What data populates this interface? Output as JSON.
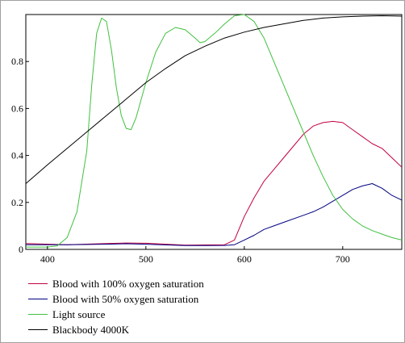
{
  "chart_data": {
    "type": "line",
    "title": "",
    "xlabel": "",
    "ylabel": "",
    "xlim": [
      378,
      760
    ],
    "ylim": [
      0,
      1.0
    ],
    "xticks": [
      400,
      500,
      600,
      700
    ],
    "yticks": [
      0,
      0.2,
      0.4,
      0.6,
      0.8
    ],
    "tick_labels_x": [
      "400",
      "500",
      "600",
      "700"
    ],
    "tick_labels_y": [
      "0",
      "0.2",
      "0.4",
      "0.6",
      "0.8"
    ],
    "grid": false,
    "legend_position": "bottom-left",
    "series": [
      {
        "name": "Blood with 100% oxygen saturation",
        "color": "#c00040",
        "x": [
          378,
          420,
          460,
          480,
          500,
          540,
          580,
          590,
          600,
          610,
          620,
          630,
          640,
          650,
          660,
          670,
          680,
          690,
          700,
          710,
          720,
          730,
          740,
          750,
          760
        ],
        "y": [
          0.025,
          0.02,
          0.025,
          0.027,
          0.026,
          0.018,
          0.02,
          0.04,
          0.14,
          0.22,
          0.29,
          0.34,
          0.39,
          0.44,
          0.49,
          0.525,
          0.54,
          0.545,
          0.54,
          0.51,
          0.48,
          0.45,
          0.43,
          0.39,
          0.35
        ]
      },
      {
        "name": "Blood with 50% oxygen saturation",
        "color": "#000080",
        "x": [
          378,
          420,
          460,
          480,
          500,
          540,
          580,
          590,
          600,
          610,
          620,
          630,
          640,
          660,
          670,
          680,
          690,
          700,
          710,
          720,
          730,
          740,
          750,
          760
        ],
        "y": [
          0.02,
          0.02,
          0.022,
          0.024,
          0.022,
          0.016,
          0.017,
          0.02,
          0.04,
          0.06,
          0.085,
          0.1,
          0.115,
          0.145,
          0.16,
          0.18,
          0.205,
          0.23,
          0.255,
          0.27,
          0.28,
          0.26,
          0.23,
          0.21
        ]
      },
      {
        "name": "Light source",
        "color": "#40c040",
        "x": [
          378,
          400,
          410,
          420,
          430,
          440,
          445,
          450,
          455,
          460,
          465,
          470,
          475,
          480,
          485,
          490,
          500,
          510,
          520,
          530,
          540,
          550,
          555,
          560,
          570,
          580,
          590,
          600,
          610,
          620,
          630,
          640,
          650,
          660,
          670,
          680,
          690,
          700,
          710,
          720,
          730,
          740,
          750,
          760
        ],
        "y": [
          0.01,
          0.01,
          0.015,
          0.05,
          0.16,
          0.42,
          0.7,
          0.92,
          0.985,
          0.97,
          0.85,
          0.69,
          0.57,
          0.515,
          0.51,
          0.56,
          0.71,
          0.84,
          0.92,
          0.945,
          0.935,
          0.9,
          0.88,
          0.885,
          0.92,
          0.96,
          0.995,
          1.0,
          0.97,
          0.9,
          0.8,
          0.7,
          0.6,
          0.5,
          0.4,
          0.31,
          0.23,
          0.17,
          0.13,
          0.1,
          0.08,
          0.065,
          0.05,
          0.04
        ]
      },
      {
        "name": "Blackbody 4000K",
        "color": "#000000",
        "x": [
          378,
          400,
          420,
          440,
          460,
          480,
          500,
          520,
          540,
          560,
          580,
          600,
          620,
          640,
          660,
          680,
          700,
          720,
          740,
          760
        ],
        "y": [
          0.28,
          0.36,
          0.43,
          0.5,
          0.57,
          0.64,
          0.71,
          0.77,
          0.825,
          0.865,
          0.9,
          0.925,
          0.945,
          0.96,
          0.975,
          0.985,
          0.99,
          0.993,
          0.995,
          0.993
        ]
      }
    ]
  }
}
